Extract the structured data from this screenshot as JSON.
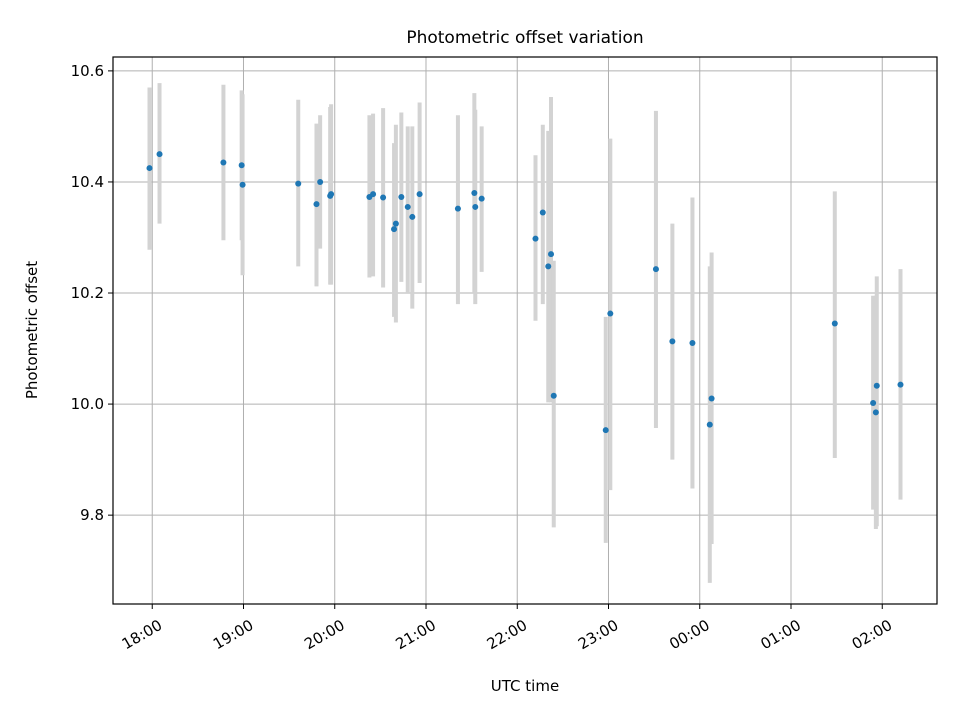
{
  "chart_data": {
    "type": "scatter",
    "title": "Photometric offset variation",
    "xlabel": "UTC time",
    "ylabel": "Photometric offset",
    "x_ticks": [
      "18:00",
      "19:00",
      "20:00",
      "21:00",
      "22:00",
      "23:00",
      "00:00",
      "01:00",
      "02:00"
    ],
    "x_tick_hours": [
      0,
      1,
      2,
      3,
      4,
      5,
      6,
      7,
      8
    ],
    "y_ticks": [
      "9.8",
      "10.0",
      "10.2",
      "10.4",
      "10.6"
    ],
    "y_tick_values": [
      9.8,
      10.0,
      10.2,
      10.4,
      10.6
    ],
    "xlim_hours": [
      -0.43,
      8.6
    ],
    "ylim": [
      9.64,
      10.625
    ],
    "grid": true,
    "point_color": "#1f77b4",
    "errorbar_color": "#d3d3d3",
    "x_hours": [
      -0.03,
      0.08,
      0.78,
      0.98,
      0.99,
      1.6,
      1.8,
      1.84,
      1.95,
      1.96,
      2.38,
      2.42,
      2.53,
      2.65,
      2.67,
      2.73,
      2.8,
      2.85,
      2.93,
      3.35,
      3.53,
      3.54,
      3.61,
      4.2,
      4.28,
      4.34,
      4.37,
      4.4,
      4.97,
      5.02,
      5.52,
      5.7,
      5.92,
      6.11,
      6.13,
      7.48,
      7.9,
      7.93,
      7.94,
      8.2
    ],
    "y": [
      10.425,
      10.45,
      10.435,
      10.43,
      10.395,
      10.397,
      10.36,
      10.4,
      10.375,
      10.378,
      10.373,
      10.378,
      10.372,
      10.315,
      10.325,
      10.373,
      10.355,
      10.337,
      10.378,
      10.352,
      10.38,
      10.355,
      10.37,
      10.298,
      10.345,
      10.248,
      10.27,
      10.015,
      9.953,
      10.163,
      10.243,
      10.113,
      10.11,
      9.963,
      10.01,
      10.145,
      10.002,
      9.985,
      10.033,
      10.035
    ],
    "err_low": [
      10.278,
      10.325,
      10.295,
      10.295,
      10.232,
      10.248,
      10.212,
      10.28,
      10.215,
      10.215,
      10.228,
      10.23,
      10.21,
      10.157,
      10.147,
      10.22,
      10.2,
      10.172,
      10.218,
      10.18,
      10.2,
      10.18,
      10.238,
      10.15,
      10.18,
      10.003,
      10.003,
      9.778,
      9.75,
      9.845,
      9.957,
      9.9,
      9.848,
      9.678,
      9.748,
      9.903,
      9.81,
      9.775,
      9.78,
      9.828
    ],
    "err_high": [
      10.57,
      10.578,
      10.575,
      10.565,
      10.558,
      10.548,
      10.505,
      10.52,
      10.535,
      10.54,
      10.52,
      10.523,
      10.533,
      10.47,
      10.503,
      10.525,
      10.5,
      10.5,
      10.543,
      10.52,
      10.56,
      10.53,
      10.5,
      10.448,
      10.503,
      10.492,
      10.553,
      10.258,
      10.157,
      10.478,
      10.528,
      10.325,
      10.372,
      10.248,
      10.273,
      10.383,
      10.195,
      10.195,
      10.23,
      10.243
    ]
  }
}
